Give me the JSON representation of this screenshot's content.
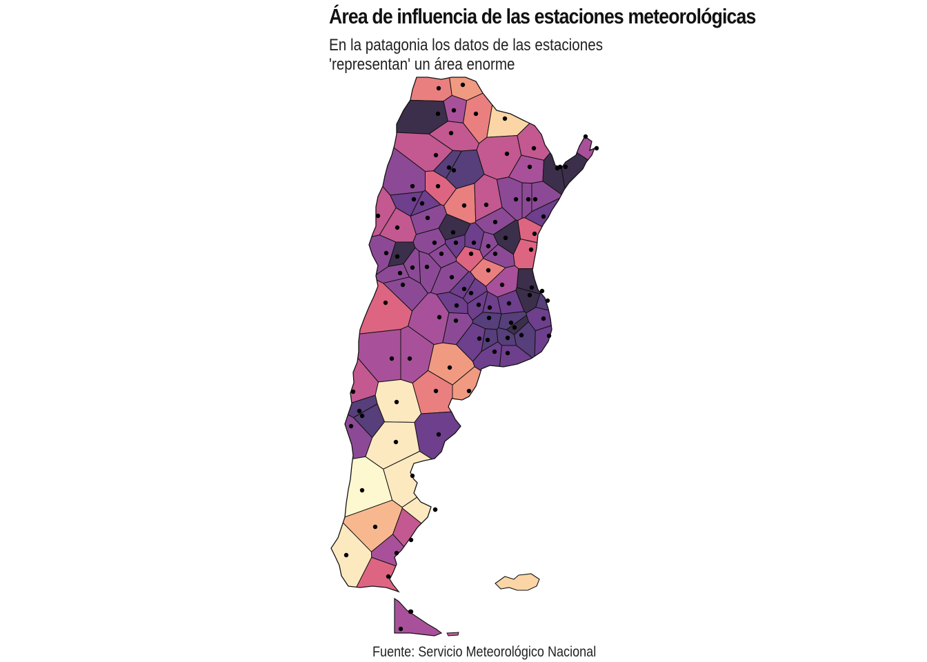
{
  "title": "Área de influencia de las estaciones meteorológicas",
  "subtitle_lines": [
    "En la patagonia los datos de las estaciones",
    "'representan' un área enorme"
  ],
  "caption": "Fuente: Servicio Meteorológico Nacional",
  "palette": {
    "outline": "#111111",
    "station_dot": "#000000",
    "scale": [
      "#2e2a2e",
      "#3c2f4b",
      "#563f7a",
      "#6e3f8c",
      "#8c4a96",
      "#a8519a",
      "#c35990",
      "#de6582",
      "#ea7f80",
      "#f19a82",
      "#f8b88f",
      "#fbd5a5",
      "#fde9c0",
      "#fef8d0"
    ]
  }
}
